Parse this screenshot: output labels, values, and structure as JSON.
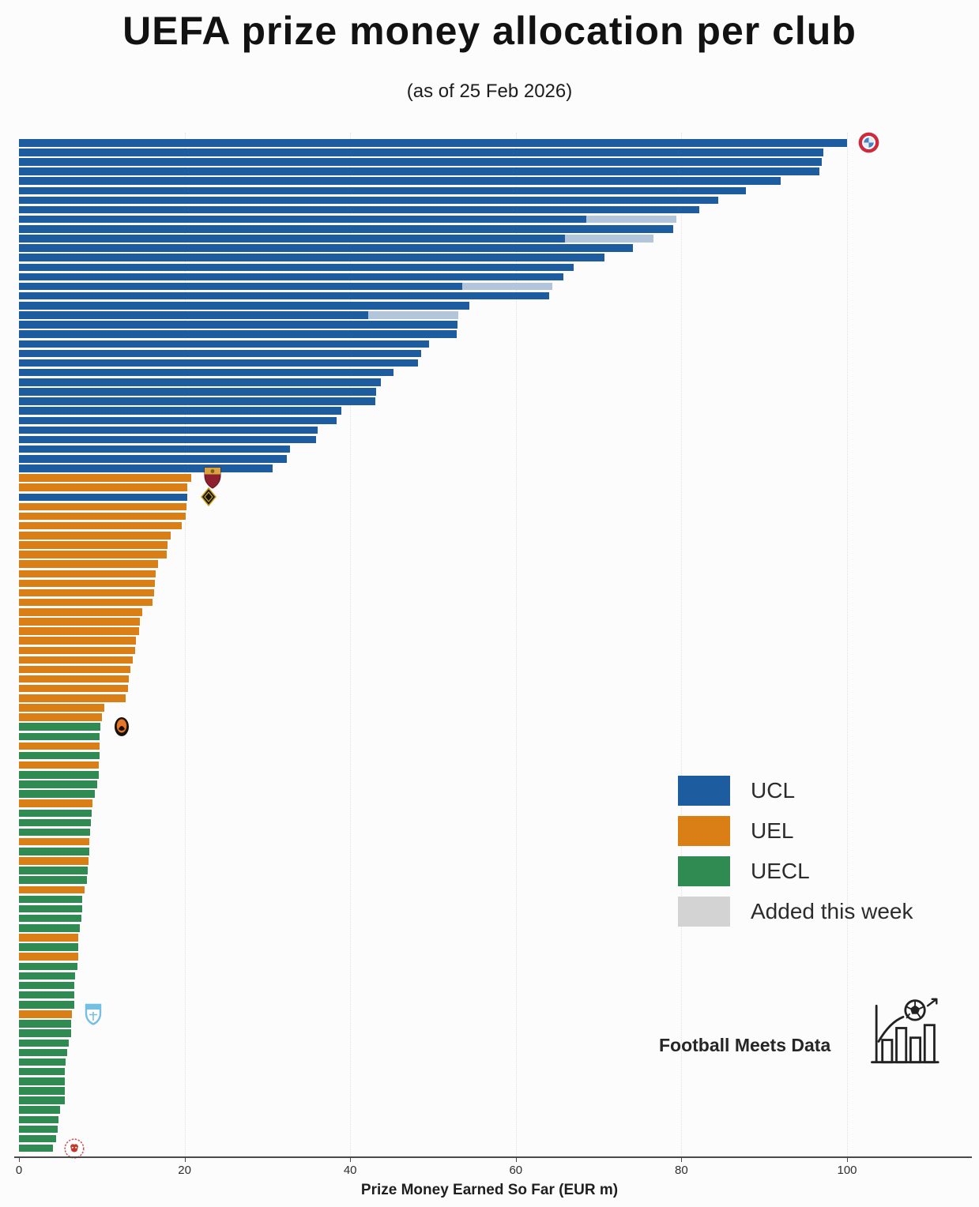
{
  "page": {
    "title": "UEFA prize money allocation per club",
    "subtitle": "(as of 25 Feb 2026)"
  },
  "colors": {
    "ucl": "#1d5c9f",
    "uel": "#d97f16",
    "uecl": "#2f8b52",
    "added_legend_swatch": "#d3d3d3",
    "added_bar_segment": "#b3c5da",
    "axis": "#4a4a4a",
    "gridline": "#e2e2e2",
    "background": "#fcfcfc"
  },
  "legend": {
    "items": [
      {
        "label": "UCL",
        "color_key": "ucl"
      },
      {
        "label": "UEL",
        "color_key": "uel"
      },
      {
        "label": "UECL",
        "color_key": "uecl"
      },
      {
        "label": "Added this week",
        "color_key": "added_legend_swatch"
      }
    ]
  },
  "footer": {
    "brand": "Football Meets Data",
    "logo_icon": "football-bar-chart-logo-icon"
  },
  "icons": {
    "club_crests": [
      "bayern-crest",
      "roma-crest",
      "black-yellow-diamond-crest",
      "shakhtar-crest",
      "malmo-crest",
      "red-imp-club-crest"
    ]
  },
  "chart_data": {
    "type": "bar",
    "orientation": "horizontal",
    "title": "UEFA prize money allocation per club",
    "subtitle": "(as of 25 Feb 2026)",
    "xlabel": "Prize Money Earned So Far (EUR m)",
    "units": "EUR million",
    "xlim": [
      0,
      114
    ],
    "xticks": [
      0,
      20,
      40,
      60,
      80,
      100
    ],
    "grid": "vertical-dotted-at-xticks",
    "legend_position": "middle-right",
    "bars_format": [
      "competition",
      "value_eur_m",
      "added_this_week_eur_m",
      "crest_icon"
    ],
    "bars": [
      [
        "UCL",
        100.0,
        0,
        "bayern-crest"
      ],
      [
        "UCL",
        97.1,
        0,
        null
      ],
      [
        "UCL",
        96.9,
        0,
        null
      ],
      [
        "UCL",
        96.7,
        0,
        null
      ],
      [
        "UCL",
        92.0,
        0,
        null
      ],
      [
        "UCL",
        87.8,
        0,
        null
      ],
      [
        "UCL",
        84.4,
        0,
        null
      ],
      [
        "UCL",
        82.2,
        0,
        null
      ],
      [
        "UCL",
        79.4,
        10.9,
        null
      ],
      [
        "UCL",
        79.0,
        0,
        null
      ],
      [
        "UCL",
        76.6,
        10.7,
        null
      ],
      [
        "UCL",
        74.1,
        0,
        null
      ],
      [
        "UCL",
        70.7,
        0,
        null
      ],
      [
        "UCL",
        67.0,
        0,
        null
      ],
      [
        "UCL",
        65.7,
        0,
        null
      ],
      [
        "UCL",
        64.4,
        10.9,
        null
      ],
      [
        "UCL",
        64.0,
        0,
        null
      ],
      [
        "UCL",
        54.4,
        0,
        null
      ],
      [
        "UCL",
        53.1,
        10.9,
        null
      ],
      [
        "UCL",
        53.0,
        0,
        null
      ],
      [
        "UCL",
        52.9,
        0,
        null
      ],
      [
        "UCL",
        49.5,
        0,
        null
      ],
      [
        "UCL",
        48.6,
        0,
        null
      ],
      [
        "UCL",
        48.2,
        0,
        null
      ],
      [
        "UCL",
        45.2,
        0,
        null
      ],
      [
        "UCL",
        43.7,
        0,
        null
      ],
      [
        "UCL",
        43.1,
        0,
        null
      ],
      [
        "UCL",
        43.0,
        0,
        null
      ],
      [
        "UCL",
        38.9,
        0,
        null
      ],
      [
        "UCL",
        38.4,
        0,
        null
      ],
      [
        "UCL",
        36.1,
        0,
        null
      ],
      [
        "UCL",
        35.9,
        0,
        null
      ],
      [
        "UCL",
        32.7,
        0,
        null
      ],
      [
        "UCL",
        32.3,
        0,
        null
      ],
      [
        "UCL",
        30.6,
        0,
        null
      ],
      [
        "UEL",
        20.8,
        0,
        "roma-crest"
      ],
      [
        "UEL",
        20.3,
        0,
        null
      ],
      [
        "UCL",
        20.3,
        0,
        "black-yellow-diamond-crest"
      ],
      [
        "UEL",
        20.2,
        0,
        null
      ],
      [
        "UEL",
        20.1,
        0,
        null
      ],
      [
        "UEL",
        19.7,
        0,
        null
      ],
      [
        "UEL",
        18.3,
        0,
        null
      ],
      [
        "UEL",
        17.9,
        0,
        null
      ],
      [
        "UEL",
        17.8,
        0,
        null
      ],
      [
        "UEL",
        16.8,
        0,
        null
      ],
      [
        "UEL",
        16.5,
        0,
        null
      ],
      [
        "UEL",
        16.4,
        0,
        null
      ],
      [
        "UEL",
        16.3,
        0,
        null
      ],
      [
        "UEL",
        16.1,
        0,
        null
      ],
      [
        "UEL",
        14.9,
        0,
        null
      ],
      [
        "UEL",
        14.6,
        0,
        null
      ],
      [
        "UEL",
        14.5,
        0,
        null
      ],
      [
        "UEL",
        14.1,
        0,
        null
      ],
      [
        "UEL",
        14.0,
        0,
        null
      ],
      [
        "UEL",
        13.7,
        0,
        null
      ],
      [
        "UEL",
        13.5,
        0,
        null
      ],
      [
        "UEL",
        13.3,
        0,
        null
      ],
      [
        "UEL",
        13.2,
        0,
        null
      ],
      [
        "UEL",
        12.9,
        0,
        null
      ],
      [
        "UEL",
        10.3,
        0,
        null
      ],
      [
        "UEL",
        10.0,
        0,
        null
      ],
      [
        "UECL",
        9.8,
        0,
        "shakhtar-crest"
      ],
      [
        "UECL",
        9.7,
        0,
        null
      ],
      [
        "UEL",
        9.7,
        0,
        null
      ],
      [
        "UECL",
        9.7,
        0,
        null
      ],
      [
        "UEL",
        9.6,
        0,
        null
      ],
      [
        "UECL",
        9.6,
        0,
        null
      ],
      [
        "UECL",
        9.4,
        0,
        null
      ],
      [
        "UECL",
        9.2,
        0,
        null
      ],
      [
        "UEL",
        8.9,
        0,
        null
      ],
      [
        "UECL",
        8.8,
        0,
        null
      ],
      [
        "UECL",
        8.7,
        0,
        null
      ],
      [
        "UECL",
        8.6,
        0,
        null
      ],
      [
        "UEL",
        8.5,
        0,
        null
      ],
      [
        "UECL",
        8.5,
        0,
        null
      ],
      [
        "UEL",
        8.4,
        0,
        null
      ],
      [
        "UECL",
        8.3,
        0,
        null
      ],
      [
        "UECL",
        8.2,
        0,
        null
      ],
      [
        "UEL",
        7.9,
        0,
        null
      ],
      [
        "UECL",
        7.6,
        0,
        null
      ],
      [
        "UECL",
        7.6,
        0,
        null
      ],
      [
        "UECL",
        7.5,
        0,
        null
      ],
      [
        "UECL",
        7.3,
        0,
        null
      ],
      [
        "UEL",
        7.2,
        0,
        null
      ],
      [
        "UECL",
        7.2,
        0,
        null
      ],
      [
        "UEL",
        7.2,
        0,
        null
      ],
      [
        "UECL",
        7.1,
        0,
        null
      ],
      [
        "UECL",
        6.8,
        0,
        null
      ],
      [
        "UECL",
        6.7,
        0,
        null
      ],
      [
        "UECL",
        6.7,
        0,
        null
      ],
      [
        "UECL",
        6.7,
        0,
        null
      ],
      [
        "UEL",
        6.4,
        0,
        "malmo-crest"
      ],
      [
        "UECL",
        6.3,
        0,
        null
      ],
      [
        "UECL",
        6.3,
        0,
        null
      ],
      [
        "UECL",
        6.0,
        0,
        null
      ],
      [
        "UECL",
        5.8,
        0,
        null
      ],
      [
        "UECL",
        5.6,
        0,
        null
      ],
      [
        "UECL",
        5.5,
        0,
        null
      ],
      [
        "UECL",
        5.5,
        0,
        null
      ],
      [
        "UECL",
        5.5,
        0,
        null
      ],
      [
        "UECL",
        5.5,
        0,
        null
      ],
      [
        "UECL",
        5.0,
        0,
        null
      ],
      [
        "UECL",
        4.8,
        0,
        null
      ],
      [
        "UECL",
        4.7,
        0,
        null
      ],
      [
        "UECL",
        4.5,
        0,
        null
      ],
      [
        "UECL",
        4.1,
        0,
        "red-imp-club-crest"
      ]
    ]
  }
}
